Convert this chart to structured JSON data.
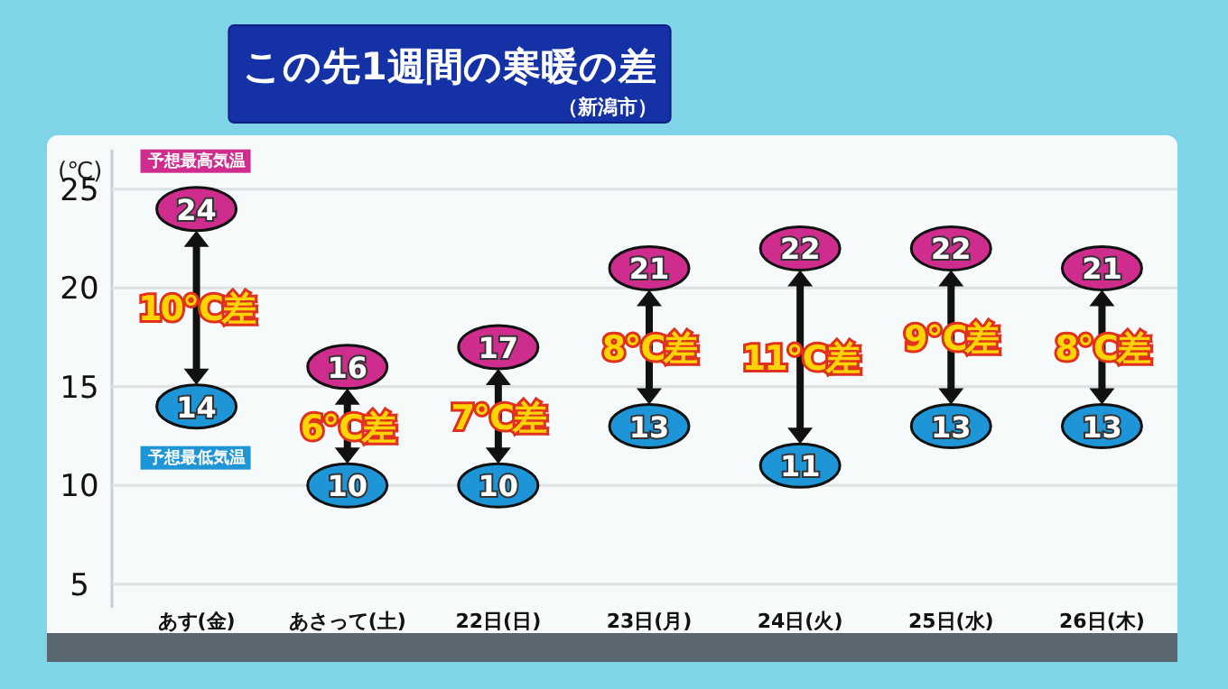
{
  "chart_data": {
    "type": "scatter",
    "title": "この先1週間の寒暖の差",
    "subtitle": "（新潟市）",
    "ylabel": "(℃)",
    "categories": [
      "あす(金)",
      "あさって(土)",
      "22日(日)",
      "23日(月)",
      "24日(火)",
      "25日(水)",
      "26日(木)"
    ],
    "series": [
      {
        "name": "予想最高気温",
        "color": "#cf2d8e",
        "values": [
          24,
          16,
          17,
          21,
          22,
          22,
          21
        ]
      },
      {
        "name": "予想最低気温",
        "color": "#1e95d6",
        "values": [
          14,
          10,
          10,
          13,
          11,
          13,
          13
        ]
      }
    ],
    "annotations": [
      "10℃差",
      "6℃差",
      "7℃差",
      "8℃差",
      "11℃差",
      "9℃差",
      "8℃差"
    ],
    "ylim": [
      3.8,
      27
    ],
    "yticks": [
      5,
      10,
      15,
      20,
      25
    ],
    "grid": "y",
    "data_labels": true
  }
}
